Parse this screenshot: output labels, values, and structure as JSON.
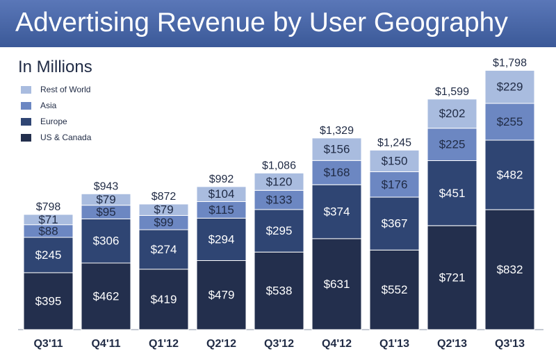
{
  "chart_data": {
    "type": "bar",
    "stacked": true,
    "title": "Advertising Revenue by User Geography",
    "subtitle": "In Millions",
    "categories": [
      "Q3'11",
      "Q4'11",
      "Q1'12",
      "Q2'12",
      "Q3'12",
      "Q4'12",
      "Q1'13",
      "Q2'13",
      "Q3'13"
    ],
    "series": [
      {
        "name": "US & Canada",
        "color": "#232f4d",
        "label_color": "#ffffff",
        "values": [
          395,
          462,
          419,
          479,
          538,
          631,
          552,
          721,
          832
        ],
        "labels": [
          "$395",
          "$462",
          "$419",
          "$479",
          "$538",
          "$631",
          "$552",
          "$721",
          "$832"
        ]
      },
      {
        "name": "Europe",
        "color": "#2f4573",
        "label_color": "#ffffff",
        "values": [
          245,
          306,
          274,
          294,
          295,
          374,
          367,
          451,
          482
        ],
        "labels": [
          "$245",
          "$306",
          "$274",
          "$294",
          "$295",
          "$374",
          "$367",
          "$451",
          "$482"
        ]
      },
      {
        "name": "Asia",
        "color": "#6c87c2",
        "label_color": "#1f2a44",
        "values": [
          88,
          95,
          99,
          115,
          133,
          168,
          176,
          225,
          255
        ],
        "labels": [
          "$88",
          "$95",
          "$99",
          "$115",
          "$133",
          "$168",
          "$176",
          "$225",
          "$255"
        ]
      },
      {
        "name": "Rest of World",
        "color": "#a9bcdf",
        "label_color": "#1f2a44",
        "values": [
          71,
          79,
          79,
          104,
          120,
          156,
          150,
          202,
          229
        ],
        "labels": [
          "$71",
          "$79",
          "$79",
          "$104",
          "$120",
          "$156",
          "$150",
          "$202",
          "$229"
        ]
      }
    ],
    "totals": [
      798,
      943,
      872,
      992,
      1086,
      1329,
      1245,
      1599,
      1798
    ],
    "total_labels": [
      "$798",
      "$943",
      "$872",
      "$992",
      "$1,086",
      "$1,329",
      "$1,245",
      "$1,599",
      "$1,798"
    ],
    "legend_order": [
      "Rest of World",
      "Asia",
      "Europe",
      "US & Canada"
    ],
    "legend_position": "top-left",
    "ylim": [
      0,
      1800
    ],
    "grid": false
  }
}
